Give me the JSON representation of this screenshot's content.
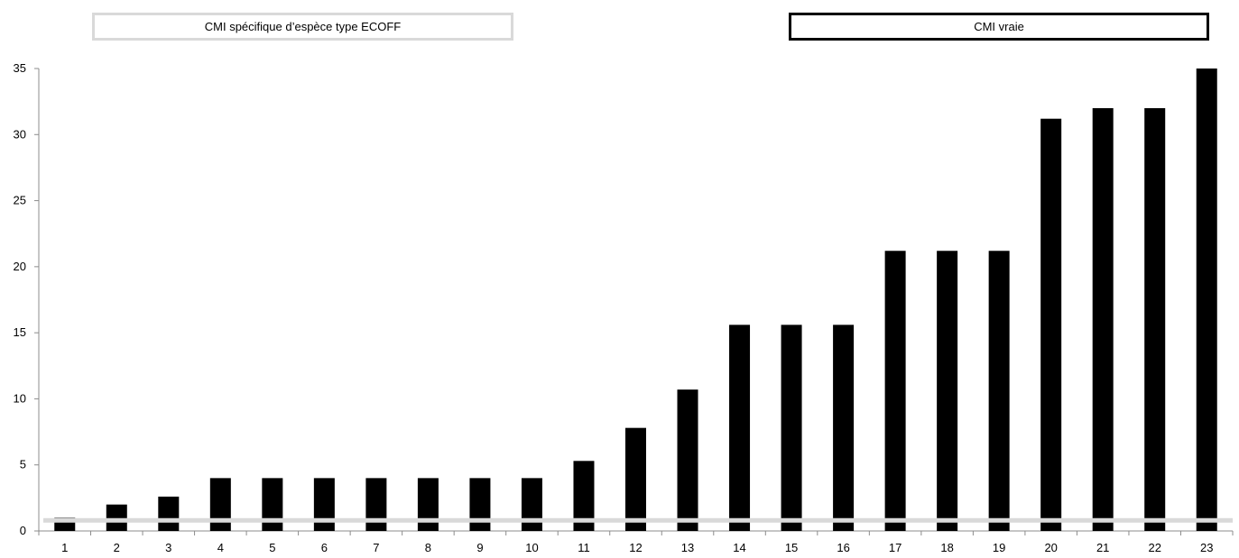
{
  "chart_data": {
    "type": "bar",
    "categories": [
      "1",
      "2",
      "3",
      "4",
      "5",
      "6",
      "7",
      "8",
      "9",
      "10",
      "11",
      "12",
      "13",
      "14",
      "15",
      "16",
      "17",
      "18",
      "19",
      "20",
      "21",
      "22",
      "23"
    ],
    "series": [
      {
        "name": "CMI vraie",
        "color": "#000000",
        "values": [
          1,
          2,
          2.6,
          4,
          4,
          4,
          4,
          4,
          4,
          4,
          5.3,
          7.8,
          10.7,
          15.6,
          15.6,
          15.6,
          21.2,
          21.2,
          21.2,
          31.2,
          32,
          32,
          35
        ]
      }
    ],
    "reference_line": {
      "name": "CMI spécifique d'espèce type ECOFF",
      "value": 0.8,
      "color": "#d9d9d9"
    },
    "y_ticks": [
      0,
      5,
      10,
      15,
      20,
      25,
      30,
      35
    ],
    "ylim": [
      0,
      35
    ],
    "title": "",
    "xlabel": "",
    "ylabel": "",
    "grid": false,
    "legend_position": "top"
  },
  "legend": {
    "ecoff_label": "CMI spécifique d’espèce type ECOFF",
    "true_label": "CMI vraie"
  }
}
